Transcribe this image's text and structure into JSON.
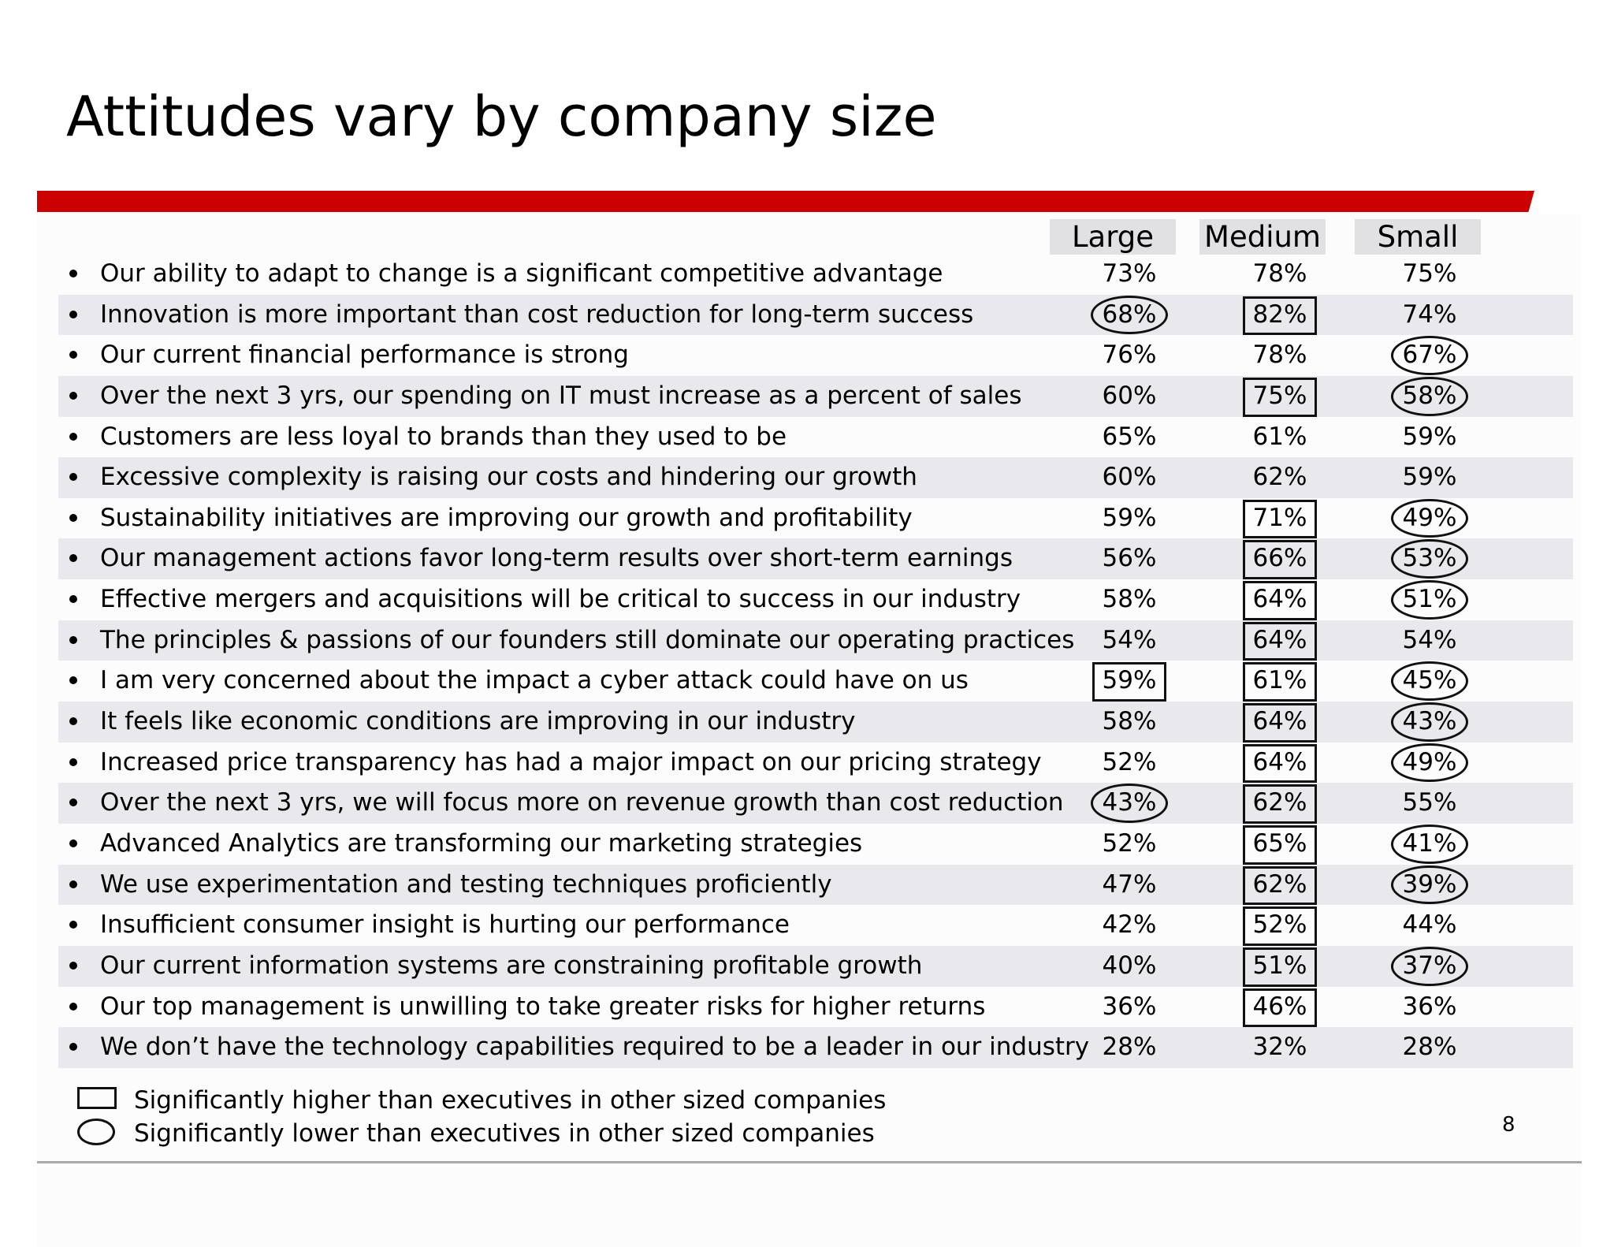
{
  "title": "Attitudes vary by company size",
  "columns": {
    "large": "Large",
    "medium": "Medium",
    "small": "Small"
  },
  "rows": [
    {
      "statement": "Our ability to adapt to change is a significant competitive advantage",
      "large": "73%",
      "medium": "78%",
      "small": "75%",
      "large_mark": "",
      "medium_mark": "",
      "small_mark": ""
    },
    {
      "statement": "Innovation is more important than cost reduction for long-term success",
      "large": "68%",
      "medium": "82%",
      "small": "74%",
      "large_mark": "low",
      "medium_mark": "high",
      "small_mark": ""
    },
    {
      "statement": "Our current financial performance is strong",
      "large": "76%",
      "medium": "78%",
      "small": "67%",
      "large_mark": "",
      "medium_mark": "",
      "small_mark": "low"
    },
    {
      "statement": "Over the next 3 yrs, our spending on IT must increase as a percent of sales",
      "large": "60%",
      "medium": "75%",
      "small": "58%",
      "large_mark": "",
      "medium_mark": "high",
      "small_mark": "low"
    },
    {
      "statement": "Customers are less loyal to brands than they used to be",
      "large": "65%",
      "medium": "61%",
      "small": "59%",
      "large_mark": "",
      "medium_mark": "",
      "small_mark": ""
    },
    {
      "statement": "Excessive complexity is raising our costs and hindering our growth",
      "large": "60%",
      "medium": "62%",
      "small": "59%",
      "large_mark": "",
      "medium_mark": "",
      "small_mark": ""
    },
    {
      "statement": "Sustainability initiatives are improving our growth and profitability",
      "large": "59%",
      "medium": "71%",
      "small": "49%",
      "large_mark": "",
      "medium_mark": "high",
      "small_mark": "low"
    },
    {
      "statement": "Our management actions favor long-term results over short-term earnings",
      "large": "56%",
      "medium": "66%",
      "small": "53%",
      "large_mark": "",
      "medium_mark": "high",
      "small_mark": "low"
    },
    {
      "statement": "Effective mergers and acquisitions will be critical to success in our industry",
      "large": "58%",
      "medium": "64%",
      "small": "51%",
      "large_mark": "",
      "medium_mark": "high",
      "small_mark": "low"
    },
    {
      "statement": "The principles & passions of our founders still dominate our operating practices",
      "large": "54%",
      "medium": "64%",
      "small": "54%",
      "large_mark": "",
      "medium_mark": "high",
      "small_mark": ""
    },
    {
      "statement": "I am very concerned about the impact a cyber attack could have on us",
      "large": "59%",
      "medium": "61%",
      "small": "45%",
      "large_mark": "high",
      "medium_mark": "high",
      "small_mark": "low"
    },
    {
      "statement": "It feels like economic conditions are improving in our industry",
      "large": "58%",
      "medium": "64%",
      "small": "43%",
      "large_mark": "",
      "medium_mark": "high",
      "small_mark": "low"
    },
    {
      "statement": "Increased price transparency has had a major impact on our pricing strategy",
      "large": "52%",
      "medium": "64%",
      "small": "49%",
      "large_mark": "",
      "medium_mark": "high",
      "small_mark": "low"
    },
    {
      "statement": "Over the next 3 yrs, we will focus more on revenue growth than cost reduction",
      "large": "43%",
      "medium": "62%",
      "small": "55%",
      "large_mark": "low",
      "medium_mark": "high",
      "small_mark": ""
    },
    {
      "statement": "Advanced Analytics are transforming our marketing strategies",
      "large": "52%",
      "medium": "65%",
      "small": "41%",
      "large_mark": "",
      "medium_mark": "high",
      "small_mark": "low"
    },
    {
      "statement": "We use experimentation and testing techniques proficiently",
      "large": "47%",
      "medium": "62%",
      "small": "39%",
      "large_mark": "",
      "medium_mark": "high",
      "small_mark": "low"
    },
    {
      "statement": "Insufficient consumer insight is hurting our performance",
      "large": "42%",
      "medium": "52%",
      "small": "44%",
      "large_mark": "",
      "medium_mark": "high",
      "small_mark": ""
    },
    {
      "statement": "Our current information systems are constraining profitable growth",
      "large": "40%",
      "medium": "51%",
      "small": "37%",
      "large_mark": "",
      "medium_mark": "high",
      "small_mark": "low"
    },
    {
      "statement": "Our top management is unwilling to take greater risks for higher returns",
      "large": "36%",
      "medium": "46%",
      "small": "36%",
      "large_mark": "",
      "medium_mark": "high",
      "small_mark": ""
    },
    {
      "statement": "We don’t have the technology capabilities required to be a leader in our industry",
      "large": "28%",
      "medium": "32%",
      "small": "28%",
      "large_mark": "",
      "medium_mark": "",
      "small_mark": ""
    }
  ],
  "legend": {
    "high": "Significantly higher than executives in other sized companies",
    "low": "Significantly lower than executives in other sized companies"
  },
  "page_number": "8",
  "colors": {
    "accent_bar": "#cc0000",
    "row_shade": "#e9e8ec",
    "header_bg": "#e1e1e3"
  },
  "icons": {
    "high_marker": "rectangle-outline",
    "low_marker": "oval-outline"
  }
}
